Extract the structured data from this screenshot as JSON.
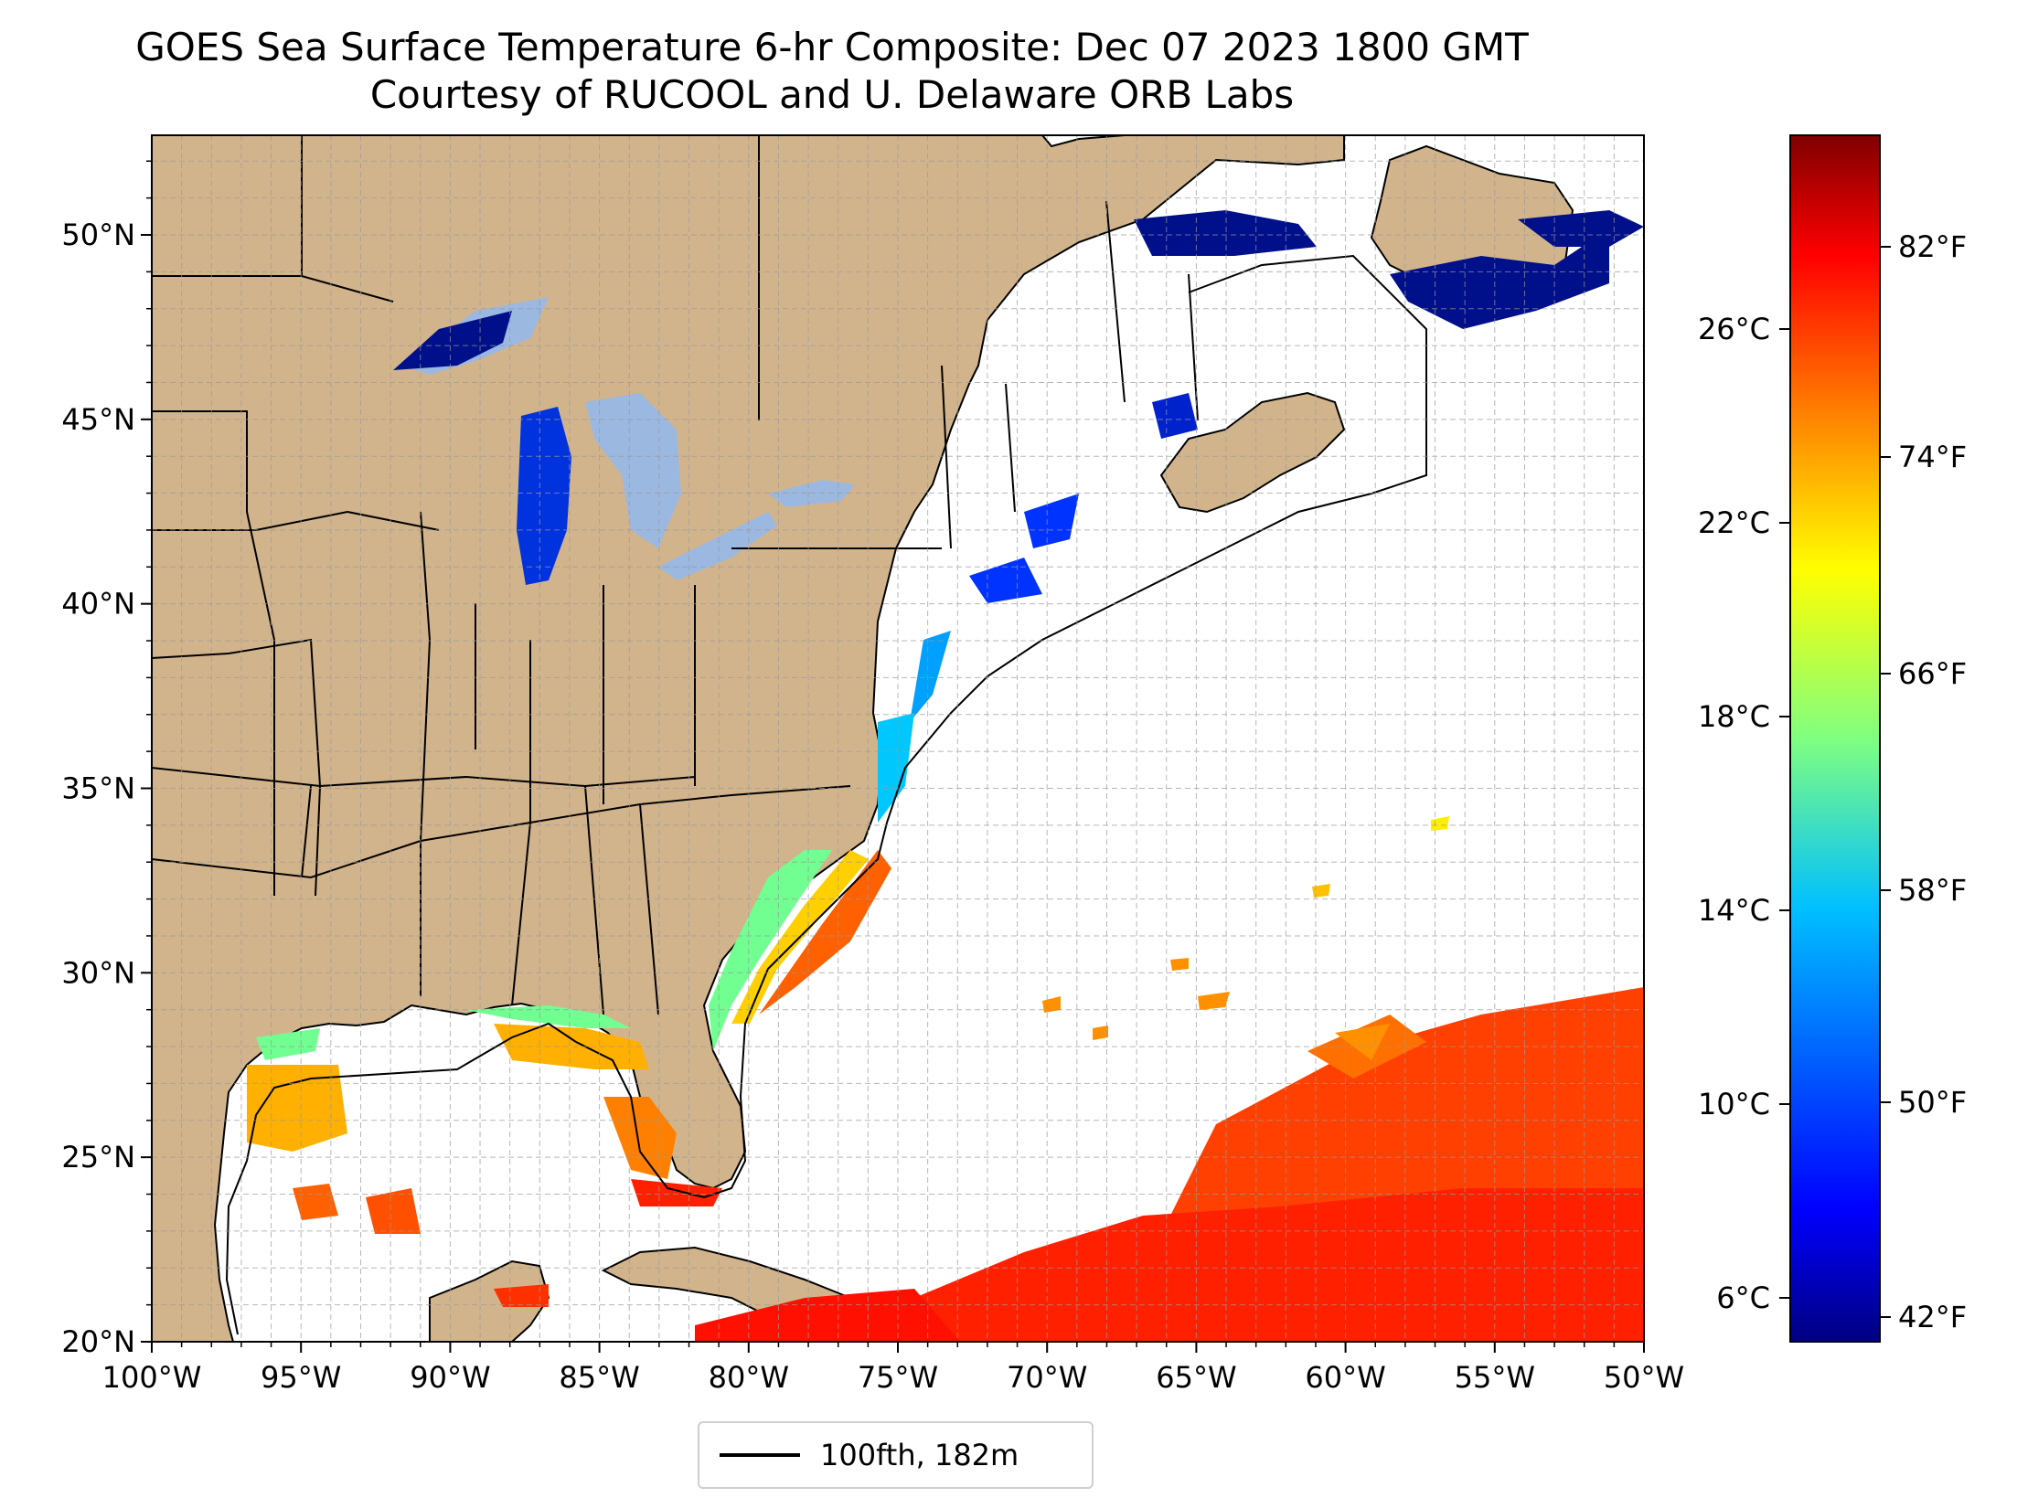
{
  "title": "GOES Sea Surface Temperature 6-hr Composite: Dec 07 2023 1800 GMT",
  "subtitle": "Courtesy of RUCOOL and U. Delaware ORB Labs",
  "map": {
    "lon_range": [
      -100,
      -50
    ],
    "lat_range": [
      20,
      52.7
    ],
    "lon_ticks": [
      "100°W",
      "95°W",
      "90°W",
      "85°W",
      "80°W",
      "75°W",
      "70°W",
      "65°W",
      "60°W",
      "55°W",
      "50°W"
    ],
    "lat_ticks": [
      "20°N",
      "25°N",
      "30°N",
      "35°N",
      "40°N",
      "45°N",
      "50°N"
    ],
    "land_color": "#d2b48c",
    "water_color": "#ffffff",
    "lake_color": "#9bb8e0",
    "grid": "on, dashed gray"
  },
  "legend": {
    "label": "100fth, 182m",
    "placement": "bottom-center"
  },
  "colorbar": {
    "colormap": "jet",
    "celsius_ticks": [
      "26°C",
      "22°C",
      "18°C",
      "14°C",
      "10°C",
      "6°C"
    ],
    "fahrenheit_ticks": [
      "82°F",
      "74°F",
      "66°F",
      "58°F",
      "50°F",
      "42°F"
    ],
    "colors": [
      "#000080",
      "#0000ff",
      "#0080ff",
      "#00ffff",
      "#80ff80",
      "#ffff00",
      "#ff8000",
      "#ff0000",
      "#800000"
    ]
  }
}
